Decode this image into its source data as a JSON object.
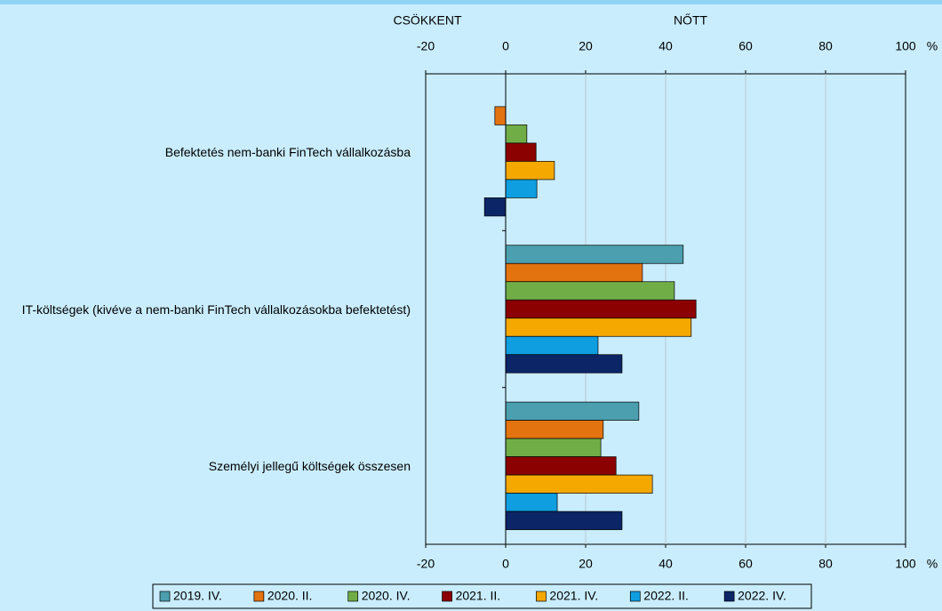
{
  "chart_data": {
    "type": "hbar",
    "annotations": [
      "CSÖKKENT",
      "NŐTT"
    ],
    "unit": "%",
    "categories": [
      "Befektetés nem-banki FinTech vállalkozásba",
      "IT-költségek (kivéve a nem-banki FinTech vállalkozásokba befektetést)",
      "Személyi jellegű költségek összesen"
    ],
    "series": [
      {
        "name": "2019. IV.",
        "color": "#4b9fae",
        "values": [
          null,
          44.4,
          33.3
        ]
      },
      {
        "name": "2020. II.",
        "color": "#e3730f",
        "values": [
          -2.7,
          34.2,
          24.4
        ]
      },
      {
        "name": "2020. IV.",
        "color": "#70ad47",
        "values": [
          5.3,
          42.2,
          23.8
        ]
      },
      {
        "name": "2021. II.",
        "color": "#8b0000",
        "values": [
          7.6,
          47.6,
          27.6
        ]
      },
      {
        "name": "2021. IV.",
        "color": "#f5a800",
        "values": [
          12.2,
          46.4,
          36.7
        ]
      },
      {
        "name": "2022. II.",
        "color": "#0f9ee0",
        "values": [
          7.8,
          23.1,
          12.9
        ]
      },
      {
        "name": "2022. IV.",
        "color": "#0b2566",
        "values": [
          -5.3,
          29.1,
          29.1
        ]
      }
    ],
    "xlim": [
      -20,
      100
    ],
    "xticks": [
      -20,
      0,
      20,
      40,
      60,
      80,
      100
    ],
    "grid": true
  }
}
